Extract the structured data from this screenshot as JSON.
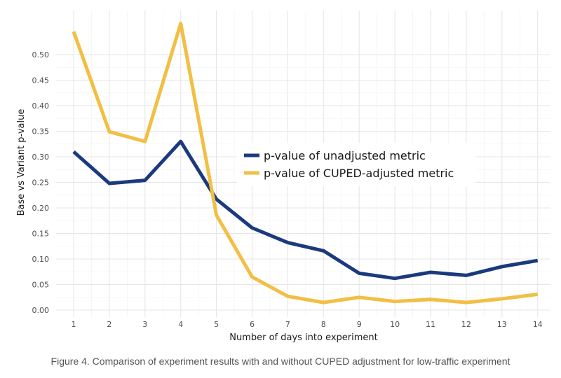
{
  "caption": "Figure 4. Comparison of experiment results with and without CUPED adjustment for low-traffic experiment",
  "chart_data": {
    "type": "line",
    "title": "",
    "xlabel": "Number of days into experiment",
    "ylabel": "Base vs Variant p-value",
    "x": [
      1,
      2,
      3,
      4,
      5,
      6,
      7,
      8,
      9,
      10,
      11,
      12,
      13,
      14
    ],
    "xlim": [
      0.5,
      14.5
    ],
    "ylim": [
      0,
      0.55
    ],
    "yticks": [
      0.0,
      0.05,
      0.1,
      0.15,
      0.2,
      0.25,
      0.3,
      0.35,
      0.4,
      0.45,
      0.5
    ],
    "ytick_labels": [
      "0.00",
      "0.05",
      "0.10",
      "0.15",
      "0.20",
      "0.25",
      "0.30",
      "0.35",
      "0.40",
      "0.45",
      "0.50"
    ],
    "grid": true,
    "legend_position": "center-right",
    "series": [
      {
        "name": "p-value of unadjusted metric",
        "color": "#1b3a7d",
        "values": [
          0.31,
          0.248,
          0.254,
          0.33,
          0.217,
          0.161,
          0.132,
          0.116,
          0.072,
          0.062,
          0.074,
          0.068,
          0.085,
          0.097
        ]
      },
      {
        "name": "p-value of CUPED-adjusted metric",
        "color": "#f2bf45",
        "values": [
          0.545,
          0.349,
          0.33,
          0.561,
          0.186,
          0.065,
          0.027,
          0.015,
          0.025,
          0.017,
          0.021,
          0.015,
          0.022,
          0.031
        ]
      }
    ]
  }
}
